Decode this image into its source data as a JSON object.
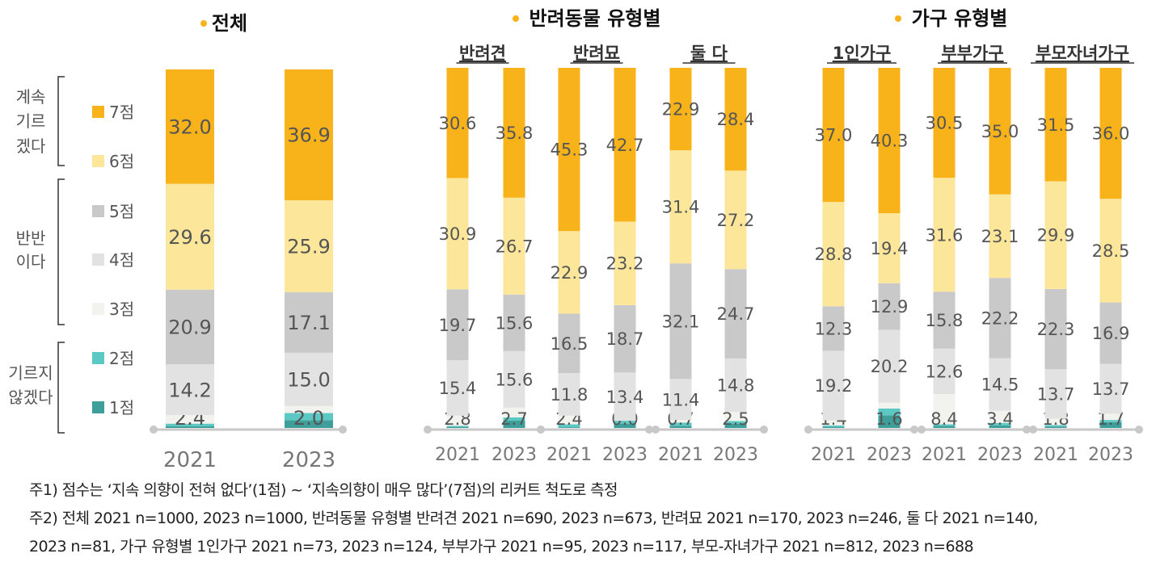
{
  "colors": {
    "score7": "#F8B31A",
    "score6": "#FCE699",
    "score5": "#C9C9C9",
    "score4": "#E2E2E2",
    "score3": "#F2F2EE",
    "score2": "#5BC8C3",
    "score1": "#3E9E9A",
    "axis": "#C8C8C8",
    "title_dot": "#F8B31A",
    "label_text": "#555555",
    "year_text": "#777777"
  },
  "legend": {
    "items": [
      "7점",
      "6점",
      "5점",
      "4점",
      "3점",
      "2점",
      "1점"
    ],
    "groups": [
      {
        "lines": [
          "계속",
          "기르",
          "겠다"
        ]
      },
      {
        "lines": [
          "반반",
          "이다"
        ]
      },
      {
        "lines": [
          "기르지",
          "않겠다"
        ]
      }
    ]
  },
  "notes": [
    "주1) 점수는 ‘지속 의향이 전혀 없다’(1점) ~ ‘지속의향이 매우 많다’(7점)의 리커트 척도로 측정",
    "주2) 전체 2021 n=1000, 2023 n=1000, 반려동물 유형별 반려견 2021 n=690, 2023 n=673, 반려묘 2021 n=170, 2023 n=246, 둘 다 2021 n=140,",
    "2023 n=81, 가구 유형별 1인가구 2021 n=73, 2023 n=124, 부부가구 2021 n=95, 2023 n=117, 부모-자녀가구 2021 n=812, 2023 n=688"
  ],
  "chart_data": [
    {
      "type": "bar",
      "stacked": true,
      "title": "전체",
      "categories": [
        "2021",
        "2023"
      ],
      "series": [
        {
          "name": "1점",
          "values": [
            0.5,
            2.2
          ]
        },
        {
          "name": "2점",
          "values": [
            0.7,
            2.0
          ]
        },
        {
          "name": "3점",
          "values": [
            2.4,
            2.0
          ]
        },
        {
          "name": "4점",
          "values": [
            14.2,
            15.0
          ]
        },
        {
          "name": "5점",
          "values": [
            20.9,
            17.1
          ]
        },
        {
          "name": "6점",
          "values": [
            29.6,
            25.9
          ]
        },
        {
          "name": "7점",
          "values": [
            32.0,
            36.9
          ]
        }
      ],
      "labels": {
        "2021": [
          "",
          "",
          "2.4",
          "14.2",
          "20.9",
          "29.6",
          "32.0"
        ],
        "2023": [
          "",
          "",
          "2.0",
          "15.0",
          "17.1",
          "25.9",
          "36.9"
        ]
      }
    },
    {
      "type": "bar",
      "stacked": true,
      "title": "반려동물 유형별",
      "panels": [
        {
          "title": "반려견",
          "categories": [
            "2021",
            "2023"
          ],
          "series": [
            {
              "name": "1점",
              "values": [
                0.3,
                2.0
              ]
            },
            {
              "name": "2점",
              "values": [
                0.3,
                0.9
              ]
            },
            {
              "name": "3점",
              "values": [
                2.8,
                2.7
              ]
            },
            {
              "name": "4점",
              "values": [
                15.4,
                15.6
              ]
            },
            {
              "name": "5점",
              "values": [
                19.7,
                15.6
              ]
            },
            {
              "name": "6점",
              "values": [
                30.9,
                26.7
              ]
            },
            {
              "name": "7점",
              "values": [
                30.6,
                35.8
              ]
            }
          ],
          "labels": {
            "2021": [
              "",
              "",
              "2.8",
              "15.4",
              "19.7",
              "30.9",
              "30.6"
            ],
            "2023": [
              "",
              "",
              "2.7",
              "15.6",
              "15.6",
              "26.7",
              "35.8"
            ]
          }
        },
        {
          "title": "반려묘",
          "categories": [
            "2021",
            "2023"
          ],
          "series": [
            {
              "name": "1점",
              "values": [
                0.2,
                1.2
              ]
            },
            {
              "name": "2점",
              "values": [
                0.8,
                0.8
              ]
            },
            {
              "name": "3점",
              "values": [
                2.4,
                0.0
              ]
            },
            {
              "name": "4점",
              "values": [
                11.8,
                13.4
              ]
            },
            {
              "name": "5점",
              "values": [
                16.5,
                18.7
              ]
            },
            {
              "name": "6점",
              "values": [
                22.9,
                23.2
              ]
            },
            {
              "name": "7점",
              "values": [
                45.3,
                42.7
              ]
            }
          ],
          "labels": {
            "2021": [
              "",
              "",
              "2.4",
              "11.8",
              "16.5",
              "22.9",
              "45.3"
            ],
            "2023": [
              "",
              "",
              "0.0",
              "13.4",
              "18.7",
              "23.2",
              "42.7"
            ]
          }
        },
        {
          "title": "둘 다",
          "categories": [
            "2021",
            "2023"
          ],
          "series": [
            {
              "name": "1점",
              "values": [
                0.6,
                1.2
              ]
            },
            {
              "name": "2점",
              "values": [
                0.9,
                0.7
              ]
            },
            {
              "name": "3점",
              "values": [
                0.7,
                2.5
              ]
            },
            {
              "name": "4점",
              "values": [
                11.4,
                14.8
              ]
            },
            {
              "name": "5점",
              "values": [
                32.1,
                24.7
              ]
            },
            {
              "name": "6점",
              "values": [
                31.4,
                27.2
              ]
            },
            {
              "name": "7점",
              "values": [
                22.9,
                28.4
              ]
            }
          ],
          "labels": {
            "2021": [
              "",
              "",
              "0.7",
              "11.4",
              "32.1",
              "31.4",
              "22.9"
            ],
            "2023": [
              "",
              "",
              "2.5",
              "14.8",
              "24.7",
              "27.2",
              "28.4"
            ]
          }
        }
      ]
    },
    {
      "type": "bar",
      "stacked": true,
      "title": "가구 유형별",
      "panels": [
        {
          "title": "1인가구",
          "categories": [
            "2021",
            "2023"
          ],
          "series": [
            {
              "name": "1점",
              "values": [
                0.3,
                3.5
              ]
            },
            {
              "name": "2점",
              "values": [
                0.4,
                1.9
              ]
            },
            {
              "name": "3점",
              "values": [
                1.4,
                1.6
              ]
            },
            {
              "name": "4점",
              "values": [
                19.2,
                20.2
              ]
            },
            {
              "name": "5점",
              "values": [
                12.3,
                12.9
              ]
            },
            {
              "name": "6점",
              "values": [
                28.8,
                19.4
              ]
            },
            {
              "name": "7점",
              "values": [
                37.0,
                40.3
              ]
            }
          ],
          "labels": {
            "2021": [
              "",
              "",
              "1.4",
              "19.2",
              "12.3",
              "28.8",
              "37.0"
            ],
            "2023": [
              "",
              "",
              "1.6",
              "20.2",
              "12.9",
              "19.4",
              "40.3"
            ]
          }
        },
        {
          "title": "부부가구",
          "categories": [
            "2021",
            "2023"
          ],
          "series": [
            {
              "name": "1점",
              "values": [
                0.6,
                0.7
              ]
            },
            {
              "name": "2점",
              "values": [
                0.4,
                0.7
              ]
            },
            {
              "name": "3점",
              "values": [
                8.4,
                3.4
              ]
            },
            {
              "name": "4점",
              "values": [
                12.6,
                14.5
              ]
            },
            {
              "name": "5점",
              "values": [
                15.8,
                22.2
              ]
            },
            {
              "name": "6점",
              "values": [
                31.6,
                23.1
              ]
            },
            {
              "name": "7점",
              "values": [
                30.5,
                35.0
              ]
            }
          ],
          "labels": {
            "2021": [
              "",
              "",
              "8.4",
              "12.6",
              "15.8",
              "31.6",
              "30.5"
            ],
            "2023": [
              "",
              "",
              "3.4",
              "14.5",
              "22.2",
              "23.1",
              "35.0"
            ]
          }
        },
        {
          "title": "부모자녀가구",
          "categories": [
            "2021",
            "2023"
          ],
          "series": [
            {
              "name": "1점",
              "values": [
                0.4,
                1.6
              ]
            },
            {
              "name": "2점",
              "values": [
                0.4,
                0.6
              ]
            },
            {
              "name": "3점",
              "values": [
                1.8,
                1.7
              ]
            },
            {
              "name": "4점",
              "values": [
                13.7,
                13.7
              ]
            },
            {
              "name": "5점",
              "values": [
                22.3,
                16.9
              ]
            },
            {
              "name": "6점",
              "values": [
                29.9,
                28.5
              ]
            },
            {
              "name": "7점",
              "values": [
                31.5,
                36.0
              ]
            }
          ],
          "labels": {
            "2021": [
              "",
              "",
              "1.8",
              "13.7",
              "22.3",
              "29.9",
              "31.5"
            ],
            "2023": [
              "",
              "",
              "1.7",
              "13.7",
              "16.9",
              "28.5",
              "36.0"
            ]
          }
        }
      ]
    }
  ]
}
